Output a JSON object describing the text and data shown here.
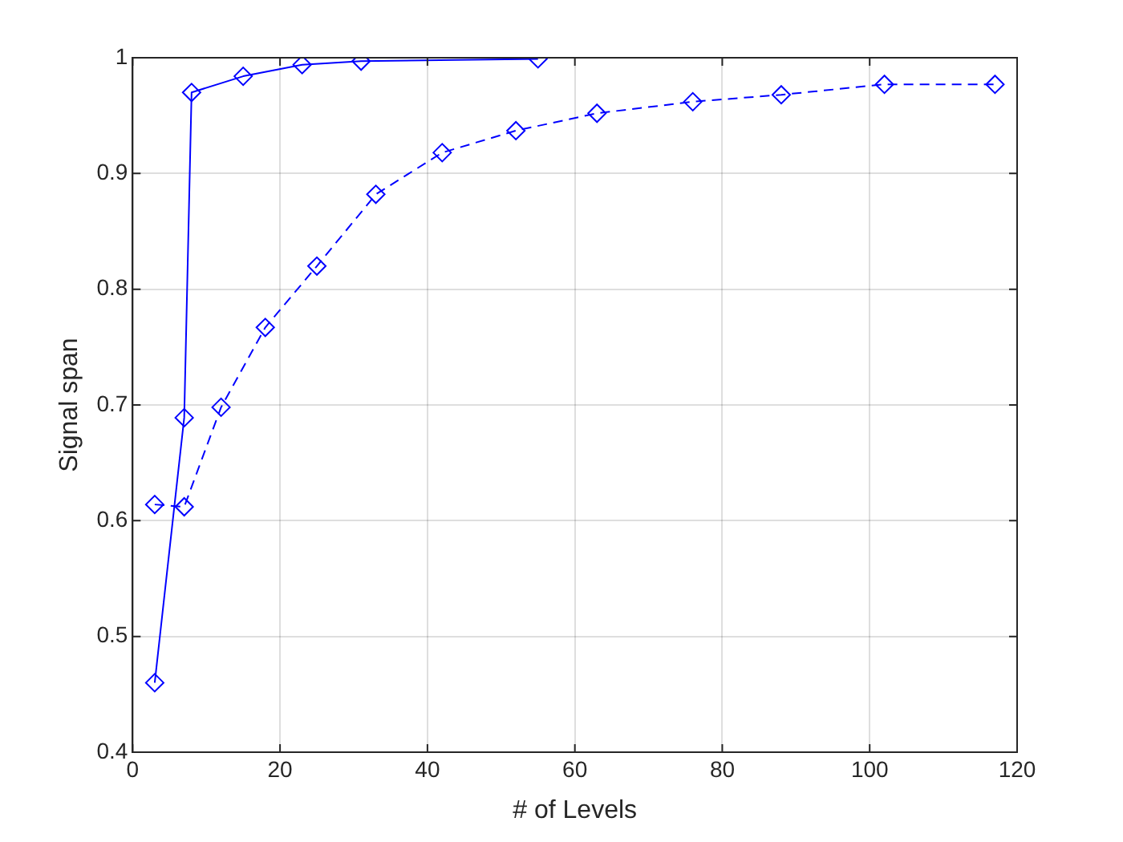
{
  "chart_data": {
    "type": "line",
    "xlabel": "# of Levels",
    "ylabel": "Signal span",
    "xlim": [
      0,
      120
    ],
    "xticks": [
      0,
      20,
      40,
      60,
      80,
      100,
      120
    ],
    "ylim": [
      0.4,
      1
    ],
    "yticks": [
      0.4,
      0.5,
      0.6,
      0.7,
      0.8,
      0.9,
      1
    ],
    "grid": true,
    "legend": false,
    "marker": "diamond",
    "series": [
      {
        "color": "#0000ff",
        "line_style": "solid",
        "x": [
          3,
          7,
          8,
          15,
          23,
          31,
          55
        ],
        "values": [
          0.46,
          0.689,
          0.97,
          0.984,
          0.994,
          0.997,
          0.999
        ]
      },
      {
        "color": "#0000ff",
        "line_style": "dashed",
        "x": [
          3,
          7,
          12,
          18,
          25,
          33,
          42,
          52,
          63,
          76,
          88,
          102,
          117
        ],
        "values": [
          0.614,
          0.612,
          0.698,
          0.767,
          0.82,
          0.882,
          0.918,
          0.937,
          0.952,
          0.962,
          0.968,
          0.977,
          0.977
        ]
      }
    ]
  }
}
